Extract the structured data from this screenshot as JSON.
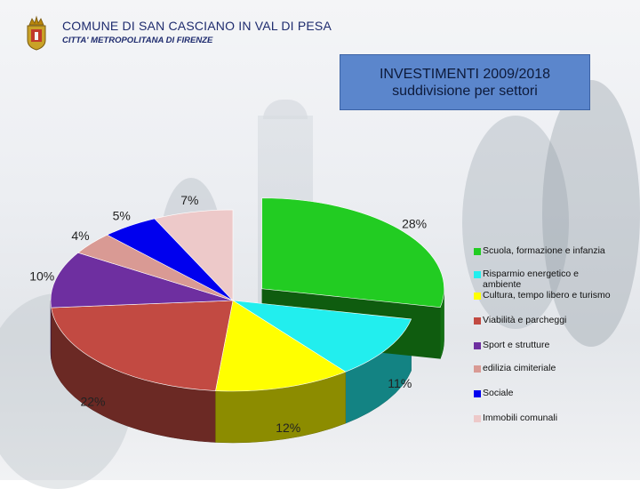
{
  "header": {
    "title": "COMUNE DI SAN CASCIANO IN VAL DI PESA",
    "subtitle": "CITTA' METROPOLITANA DI FIRENZE",
    "logo_icon": "coat-of-arms-icon"
  },
  "chart_data": {
    "type": "pie",
    "title": [
      "INVESTIMENTI 2009/2018",
      "suddivisione per settori"
    ],
    "legend_position": "right",
    "series": [
      {
        "name": "Scuola, formazione e infanzia",
        "value": 28,
        "label": "28%",
        "color": "#22cc22"
      },
      {
        "name": "Risparmio energetico e ambiente",
        "value": 11,
        "label": "11%",
        "color": "#22eeee"
      },
      {
        "name": "Cultura, tempo libero e turismo",
        "value": 12,
        "label": "12%",
        "color": "#ffff00"
      },
      {
        "name": "Viabilità e parcheggi",
        "value": 22,
        "label": "22%",
        "color": "#c24a42"
      },
      {
        "name": "Sport e strutture",
        "value": 10,
        "label": "10%",
        "color": "#6e2fa0"
      },
      {
        "name": "edilizia cimiteriale",
        "value": 4,
        "label": "4%",
        "color": "#d99a94"
      },
      {
        "name": "Sociale",
        "value": 5,
        "label": "5%",
        "color": "#0000ee"
      },
      {
        "name": "Immobili comunali",
        "value": 7,
        "label": "7%",
        "color": "#edc9c9"
      }
    ]
  }
}
